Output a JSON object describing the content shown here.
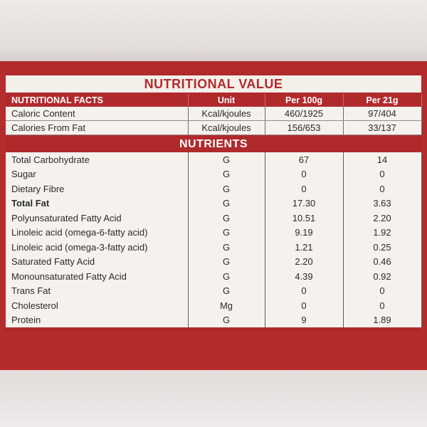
{
  "title": "NUTRITIONAL VALUE",
  "facts_header": {
    "name": "NUTRITIONAL FACTS",
    "unit": "Unit",
    "per100": "Per 100g",
    "per21": "Per 21g"
  },
  "facts_rows": [
    {
      "name": "Caloric Content",
      "unit": "Kcal/kjoules",
      "per100": "460/1925",
      "per21": "97/404"
    },
    {
      "name": "Calories From Fat",
      "unit": "Kcal/kjoules",
      "per100": "156/653",
      "per21": "33/137"
    }
  ],
  "nutrients_title": "NUTRIENTS",
  "nutrients_rows": [
    {
      "name": "Total Carbohydrate",
      "unit": "G",
      "per100": "67",
      "per21": "14"
    },
    {
      "name": "Sugar",
      "unit": "G",
      "per100": "0",
      "per21": "0"
    },
    {
      "name": "Dietary Fibre",
      "unit": "G",
      "per100": "0",
      "per21": "0"
    },
    {
      "name": "Total Fat",
      "unit": "G",
      "per100": "17.30",
      "per21": "3.63"
    },
    {
      "name": "Polyunsaturated Fatty Acid",
      "unit": "G",
      "per100": "10.51",
      "per21": "2.20"
    },
    {
      "name": "Linoleic acid (omega-6-fatty acid)",
      "unit": "G",
      "per100": "9.19",
      "per21": "1.92"
    },
    {
      "name": "Linoleic acid (omega-3-fatty acid)",
      "unit": "G",
      "per100": "1.21",
      "per21": "0.25"
    },
    {
      "name": "Saturated Fatty Acid",
      "unit": "G",
      "per100": "2.20",
      "per21": "0.46"
    },
    {
      "name": "Monounsaturated Fatty Acid",
      "unit": "G",
      "per100": "4.39",
      "per21": "0.92"
    },
    {
      "name": "Trans Fat",
      "unit": "G",
      "per100": "0",
      "per21": "0"
    },
    {
      "name": "Cholesterol",
      "unit": "Mg",
      "per100": "0",
      "per21": "0"
    },
    {
      "name": "Protein",
      "unit": "G",
      "per100": "9",
      "per21": "1.89"
    }
  ],
  "colors": {
    "accent_red": "#b02a2c",
    "cell_background": "#f5f2ee"
  }
}
